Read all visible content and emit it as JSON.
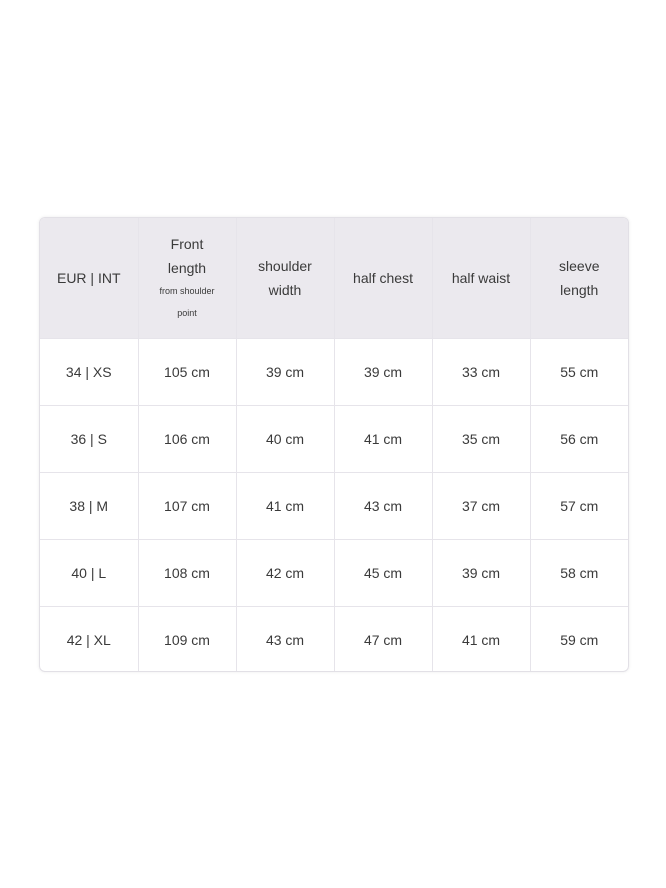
{
  "table": {
    "headers": [
      {
        "label": "EUR | INT"
      },
      {
        "label": "Front length",
        "sub": "from shoulder point"
      },
      {
        "label": "shoulder width"
      },
      {
        "label": "half chest"
      },
      {
        "label": "half waist"
      },
      {
        "label": "sleeve length"
      }
    ],
    "rows": [
      [
        "34 | XS",
        "105 cm",
        "39 cm",
        "39 cm",
        "33 cm",
        "55 cm"
      ],
      [
        "36 | S",
        "106 cm",
        "40 cm",
        "41 cm",
        "35 cm",
        "56 cm"
      ],
      [
        "38 | M",
        "107 cm",
        "41 cm",
        "43 cm",
        "37 cm",
        "57 cm"
      ],
      [
        "40 | L",
        "108 cm",
        "42 cm",
        "45 cm",
        "39 cm",
        "58 cm"
      ],
      [
        "42 | XL",
        "109 cm",
        "43 cm",
        "47 cm",
        "41 cm",
        "59 cm"
      ]
    ]
  },
  "colors": {
    "header_bg": "#ebe9ee",
    "border": "#e6e4ea",
    "text": "#3a3a3a"
  }
}
